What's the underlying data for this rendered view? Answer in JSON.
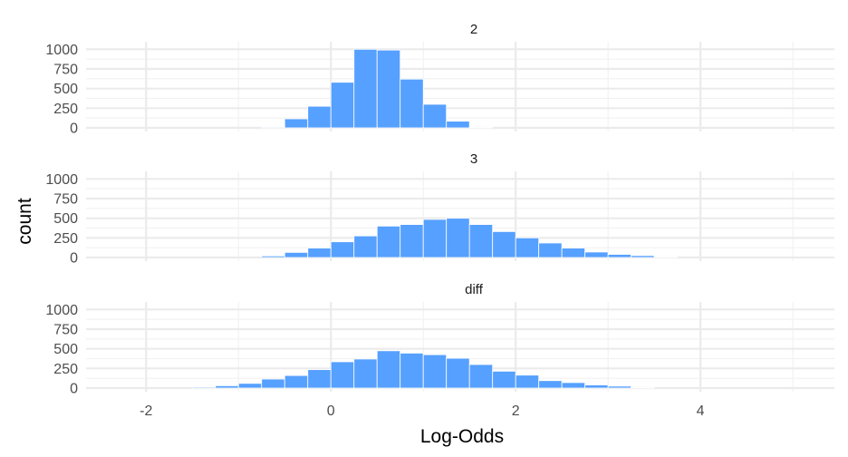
{
  "chart_data": {
    "type": "bar",
    "subtype": "faceted-histogram",
    "xlabel": "Log-Odds",
    "ylabel": "count",
    "xlim": [
      -2.65,
      5.45
    ],
    "ylim": [
      0,
      1050
    ],
    "x_ticks": [
      -2,
      0,
      2,
      4
    ],
    "x_tick_labels": [
      "-2",
      "0",
      "2",
      "4"
    ],
    "y_ticks": [
      0,
      250,
      500,
      750,
      1000
    ],
    "y_tick_labels": [
      "0",
      "250",
      "500",
      "750",
      "1000"
    ],
    "bin_width": 0.25,
    "grid": true,
    "legend": "none",
    "facets": [
      {
        "label": "2",
        "bins": [
          {
            "x": -0.625,
            "count": 10
          },
          {
            "x": -0.375,
            "count": 115
          },
          {
            "x": -0.125,
            "count": 275
          },
          {
            "x": 0.125,
            "count": 580
          },
          {
            "x": 0.375,
            "count": 1000
          },
          {
            "x": 0.625,
            "count": 990
          },
          {
            "x": 0.875,
            "count": 620
          },
          {
            "x": 1.125,
            "count": 300
          },
          {
            "x": 1.375,
            "count": 85
          },
          {
            "x": 1.625,
            "count": 8
          }
        ]
      },
      {
        "label": "3",
        "bins": [
          {
            "x": -0.625,
            "count": 20
          },
          {
            "x": -0.375,
            "count": 65
          },
          {
            "x": -0.125,
            "count": 120
          },
          {
            "x": 0.125,
            "count": 200
          },
          {
            "x": 0.375,
            "count": 275
          },
          {
            "x": 0.625,
            "count": 400
          },
          {
            "x": 0.875,
            "count": 420
          },
          {
            "x": 1.125,
            "count": 485
          },
          {
            "x": 1.375,
            "count": 500
          },
          {
            "x": 1.625,
            "count": 420
          },
          {
            "x": 1.875,
            "count": 330
          },
          {
            "x": 2.125,
            "count": 250
          },
          {
            "x": 2.375,
            "count": 185
          },
          {
            "x": 2.625,
            "count": 120
          },
          {
            "x": 2.875,
            "count": 70
          },
          {
            "x": 3.125,
            "count": 40
          },
          {
            "x": 3.375,
            "count": 25
          },
          {
            "x": 3.625,
            "count": 6
          }
        ]
      },
      {
        "label": "diff",
        "bins": [
          {
            "x": -1.375,
            "count": 12
          },
          {
            "x": -1.125,
            "count": 30
          },
          {
            "x": -0.875,
            "count": 60
          },
          {
            "x": -0.625,
            "count": 115
          },
          {
            "x": -0.375,
            "count": 160
          },
          {
            "x": -0.125,
            "count": 235
          },
          {
            "x": 0.125,
            "count": 335
          },
          {
            "x": 0.375,
            "count": 370
          },
          {
            "x": 0.625,
            "count": 475
          },
          {
            "x": 0.875,
            "count": 445
          },
          {
            "x": 1.125,
            "count": 425
          },
          {
            "x": 1.375,
            "count": 380
          },
          {
            "x": 1.625,
            "count": 300
          },
          {
            "x": 1.875,
            "count": 215
          },
          {
            "x": 2.125,
            "count": 165
          },
          {
            "x": 2.375,
            "count": 95
          },
          {
            "x": 2.625,
            "count": 70
          },
          {
            "x": 2.875,
            "count": 40
          },
          {
            "x": 3.125,
            "count": 25
          },
          {
            "x": 3.375,
            "count": 6
          }
        ]
      }
    ],
    "colors": {
      "bar_fill": "#56a0ff",
      "bar_stroke": "#ffffff",
      "grid_major": "#ebebeb",
      "grid_minor": "#f2f2f2",
      "background": "#ffffff"
    }
  }
}
